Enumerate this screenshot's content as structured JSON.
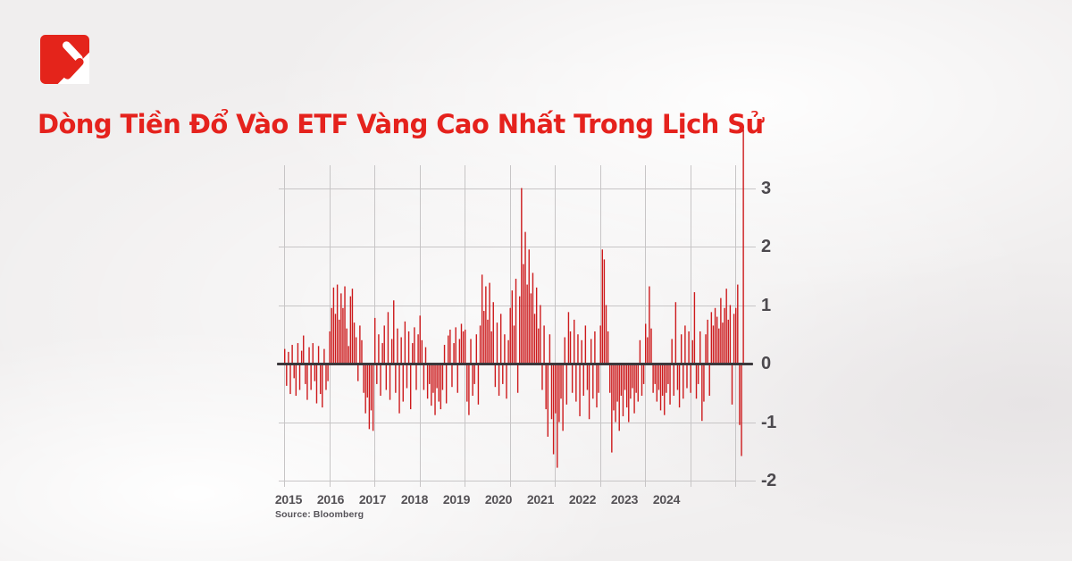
{
  "brand": {
    "logo_color": "#e4241b"
  },
  "chart_data": {
    "type": "bar",
    "title": "Dòng Tiền Đổ Vào ETF Vàng Cao Nhất Trong Lịch Sử",
    "title_color": "#e5221d",
    "source": "Source: Bloomberg",
    "grid": true,
    "legend": false,
    "bar_color": "#cd1a1c",
    "x_start_year": 2015,
    "samples_per_year": 24,
    "x_tick_labels": [
      "2015",
      "2016",
      "2017",
      "2018",
      "2019",
      "2020",
      "2021",
      "2022",
      "2023",
      "2024"
    ],
    "y_ticks": [
      3,
      2,
      1,
      0,
      -1,
      -2
    ],
    "y_tick_labels": [
      "3",
      "2",
      "1",
      "0",
      "-1",
      "-2"
    ],
    "ylim": [
      -2.2,
      4.1
    ],
    "values": [
      0.25,
      -0.38,
      0.2,
      -0.52,
      0.32,
      -0.25,
      -0.55,
      0.35,
      -0.45,
      0.22,
      0.48,
      -0.35,
      -0.62,
      0.28,
      -0.45,
      0.35,
      -0.3,
      -0.68,
      0.3,
      -0.52,
      -0.75,
      0.25,
      -0.45,
      -0.3,
      0.55,
      0.95,
      1.3,
      0.85,
      1.35,
      0.75,
      1.2,
      0.95,
      1.32,
      0.6,
      0.3,
      1.15,
      1.28,
      0.7,
      0.45,
      -0.3,
      0.65,
      0.4,
      -0.5,
      -0.85,
      -0.58,
      -1.12,
      -0.8,
      -1.15,
      0.78,
      -0.35,
      0.5,
      -0.55,
      0.35,
      0.65,
      -0.45,
      0.88,
      -0.62,
      0.42,
      1.08,
      -0.5,
      0.6,
      -0.85,
      0.45,
      -0.65,
      0.72,
      -0.42,
      0.55,
      -0.78,
      0.35,
      0.62,
      -0.45,
      0.5,
      0.82,
      0.4,
      -0.45,
      0.28,
      -0.6,
      -0.35,
      -0.72,
      -0.5,
      -0.88,
      -0.42,
      -0.65,
      -0.78,
      -0.45,
      0.32,
      -0.68,
      0.48,
      0.58,
      -0.4,
      0.35,
      0.62,
      -0.5,
      0.42,
      0.68,
      0.55,
      0.58,
      -0.65,
      -0.88,
      0.42,
      -0.55,
      -0.35,
      0.5,
      -0.7,
      0.65,
      1.52,
      0.9,
      1.32,
      0.75,
      1.38,
      0.55,
      1.05,
      -0.4,
      0.7,
      -0.55,
      0.85,
      -0.35,
      0.5,
      -0.6,
      0.4,
      0.95,
      1.25,
      0.65,
      1.45,
      -0.5,
      1.15,
      3.0,
      1.7,
      2.25,
      1.35,
      1.95,
      1.2,
      1.55,
      0.85,
      1.3,
      0.6,
      1.0,
      -0.45,
      0.65,
      -0.78,
      -1.25,
      0.5,
      -0.95,
      -1.55,
      -0.85,
      -1.78,
      -1.0,
      -0.6,
      -1.15,
      0.45,
      -0.7,
      0.88,
      0.55,
      -0.5,
      0.75,
      -0.65,
      0.5,
      -0.9,
      0.4,
      -0.55,
      0.65,
      -0.45,
      -0.95,
      0.42,
      -0.6,
      0.55,
      -0.75,
      -0.5,
      0.65,
      1.95,
      1.78,
      1.0,
      0.55,
      -0.5,
      -1.52,
      -0.8,
      -1.0,
      -0.65,
      -1.15,
      -0.55,
      -0.9,
      -0.45,
      -0.75,
      -1.0,
      -0.6,
      -0.42,
      -0.85,
      -0.5,
      -0.65,
      0.4,
      -0.55,
      -0.35,
      0.68,
      0.45,
      1.32,
      0.6,
      -0.5,
      -0.35,
      -0.65,
      -0.45,
      -0.8,
      -0.55,
      -0.88,
      -0.5,
      -0.35,
      -0.7,
      0.42,
      -0.55,
      1.05,
      -0.45,
      -0.75,
      0.5,
      -0.6,
      0.65,
      -0.42,
      0.55,
      -0.5,
      0.4,
      1.22,
      -0.6,
      -0.35,
      0.55,
      -0.98,
      -0.65,
      0.5,
      0.75,
      -0.55,
      0.88,
      0.65,
      0.95,
      0.8,
      0.6,
      1.12,
      0.7,
      0.95,
      1.28,
      0.75,
      1.0,
      -0.7,
      0.85,
      0.95,
      1.35,
      -1.05,
      -1.58,
      4.0
    ]
  }
}
